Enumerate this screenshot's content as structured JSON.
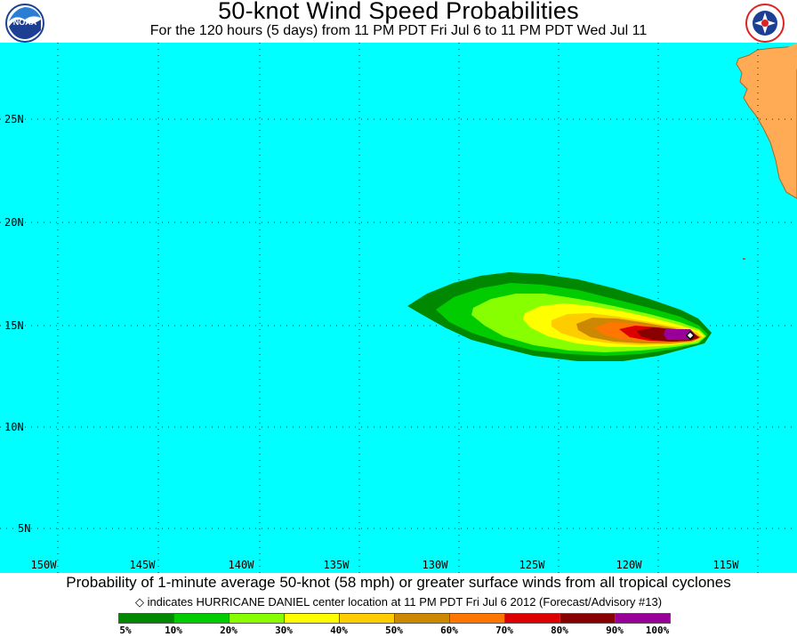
{
  "header": {
    "title": "50-knot Wind Speed Probabilities",
    "subtitle": "For the 120 hours (5 days) from 11 PM PDT Fri Jul 6 to 11 PM PDT Wed Jul 11"
  },
  "logos": {
    "left": {
      "icon": "noaa-logo-icon",
      "text": "NOAA"
    },
    "right": {
      "icon": "nws-logo-icon"
    }
  },
  "map": {
    "ocean_color": "#00ffff",
    "land_color": "#ffaa55",
    "lat_labels": [
      "25N",
      "20N",
      "15N",
      "10N",
      "5N"
    ],
    "lon_labels": [
      "150W",
      "145W",
      "140W",
      "135W",
      "130W",
      "125W",
      "120W",
      "115W"
    ],
    "storm_marker": {
      "icon": "diamond-marker-icon",
      "lat": 14.4,
      "lon": -116.9
    }
  },
  "footer": {
    "main": "Probability of 1-minute average 50-knot (58 mph) or greater surface winds from all tropical cyclones",
    "note": "indicates HURRICANE DANIEL center location at 11 PM PDT Fri Jul 6 2012 (Forecast/Advisory #13)"
  },
  "legend": {
    "colors": [
      "#008800",
      "#00cc00",
      "#88ff00",
      "#ffff00",
      "#ffcc00",
      "#cc8800",
      "#ff7700",
      "#dd0000",
      "#880000",
      "#990099"
    ],
    "labels": [
      "5%",
      "10%",
      "20%",
      "30%",
      "40%",
      "50%",
      "60%",
      "70%",
      "80%",
      "90%",
      "100%"
    ]
  }
}
